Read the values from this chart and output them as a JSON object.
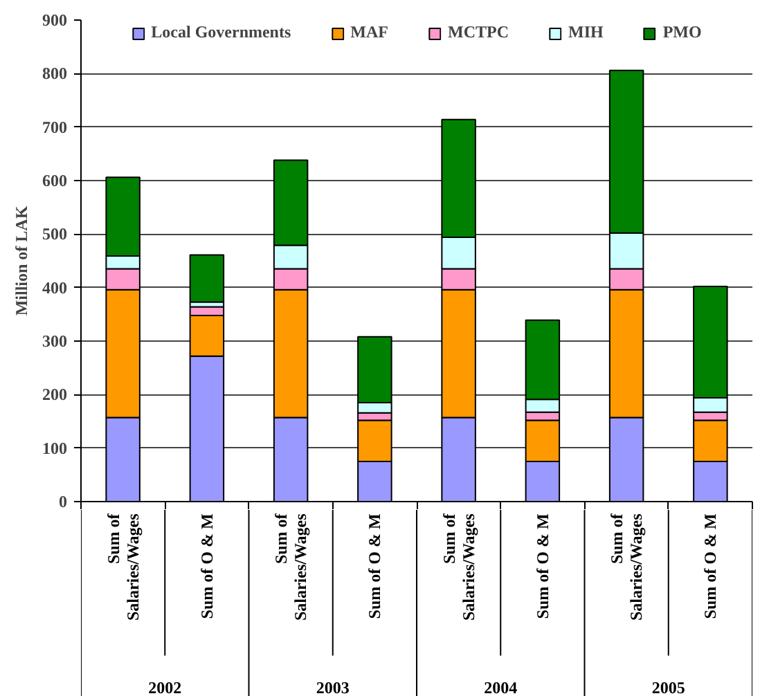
{
  "chart_data": {
    "type": "bar",
    "stacked": true,
    "ylabel": "Million of LAK",
    "categories": [
      "Sum of\nSalaries/Wages",
      "Sum of O & M",
      "Sum of\nSalaries/Wages",
      "Sum of O & M",
      "Sum of\nSalaries/Wages",
      "Sum of O & M",
      "Sum of\nSalaries/Wages",
      "Sum of O & M"
    ],
    "series": [
      {
        "name": "Local Governments",
        "color": "#9999ff",
        "values": [
          157,
          272,
          157,
          75,
          157,
          75,
          157,
          75
        ]
      },
      {
        "name": "MAF",
        "color": "#ff9900",
        "values": [
          239,
          76,
          239,
          77,
          239,
          77,
          239,
          77
        ]
      },
      {
        "name": "MCTPC",
        "color": "#ff99cc",
        "values": [
          39,
          16,
          39,
          14,
          39,
          15,
          39,
          15
        ]
      },
      {
        "name": "MIH",
        "color": "#ccffff",
        "values": [
          24,
          9,
          44,
          19,
          59,
          24,
          67,
          27
        ]
      },
      {
        "name": "PMO",
        "color": "#008000",
        "values": [
          147,
          88,
          159,
          123,
          220,
          148,
          304,
          208
        ]
      }
    ],
    "ylim": [
      0,
      900
    ],
    "yticks": [
      0,
      100,
      200,
      300,
      400,
      500,
      600,
      700,
      800,
      900
    ],
    "grid": "y",
    "legend": "top",
    "annotations": [
      "2002",
      "2003",
      "2004",
      "2005"
    ]
  }
}
